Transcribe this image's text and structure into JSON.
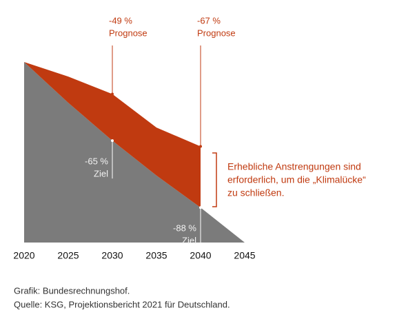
{
  "chart_data": {
    "type": "area",
    "x": [
      2020,
      2025,
      2030,
      2035,
      2040,
      2045
    ],
    "series": [
      {
        "name": "Ziel",
        "color": "#7b7b7b",
        "x": [
          2020,
          2025,
          2030,
          2035,
          2040,
          2045
        ],
        "values": [
          -38,
          -52,
          -65,
          -77,
          -88,
          -100
        ],
        "value_labels": [
          null,
          null,
          "-65 %",
          null,
          "-88 %",
          null
        ]
      },
      {
        "name": "Prognose",
        "color": "#c03a10",
        "x": [
          2020,
          2025,
          2030,
          2035,
          2040
        ],
        "values": [
          -38,
          -43,
          -49,
          -60.5,
          -67
        ],
        "value_labels": [
          null,
          null,
          "-49 %",
          null,
          "-67 %"
        ]
      }
    ],
    "xlim": [
      2020,
      2045
    ],
    "xticks": [
      2020,
      2025,
      2030,
      2035,
      2040,
      2045
    ],
    "ylim": [
      -100,
      -38
    ],
    "note": [
      "Erhebliche Anstrengungen sind",
      "erforderlich, um die „Klimalücke“",
      "zu schließen."
    ],
    "source": [
      "Grafik: Bundesrechnungshof.",
      "Quelle: KSG, Projektionsbericht 2021 für Deutschland."
    ]
  }
}
